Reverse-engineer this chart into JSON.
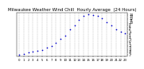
{
  "title": "Milwaukee Weather Wind Chill  Hourly Average  (24 Hours)",
  "title_fontsize": 4.0,
  "hours": [
    0,
    1,
    2,
    3,
    4,
    5,
    6,
    7,
    8,
    9,
    10,
    11,
    12,
    13,
    14,
    15,
    16,
    17,
    18,
    19,
    20,
    21,
    22,
    23
  ],
  "wind_chill": [
    -7,
    -6.5,
    -6,
    -5.5,
    -5,
    -4.5,
    -3.5,
    -2.5,
    -1,
    1,
    3,
    6,
    8,
    11,
    13,
    14,
    13.5,
    13,
    12,
    10,
    8,
    6,
    5,
    4
  ],
  "dot_color": "#0000cc",
  "dot_size": 1.5,
  "bg_color": "#ffffff",
  "ylim_min": -8,
  "ylim_max": 15,
  "ytick_vals": [
    -7,
    -6,
    -5,
    -4,
    -3,
    -2,
    -1,
    0,
    1,
    2,
    3,
    4,
    5,
    6,
    7,
    8,
    9,
    10,
    11,
    12,
    13,
    14
  ],
  "ytick_fontsize": 3.0,
  "xtick_fontsize": 2.8,
  "grid_color": "#aaaaaa",
  "grid_style": "--",
  "grid_lw": 0.3
}
